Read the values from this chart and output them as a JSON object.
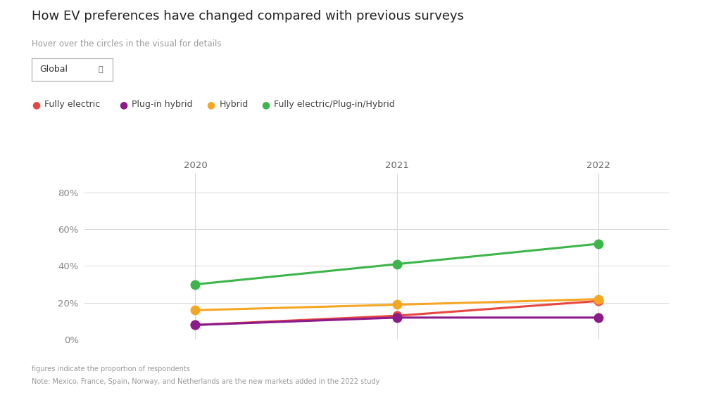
{
  "title": "How EV preferences have changed compared with previous surveys",
  "subtitle": "Hover over the circles in the visual for details",
  "dropdown_label": "Global",
  "footnote1": "figures indicate the proportion of respondents",
  "footnote2": "Note: Mexico, France, Spain, Norway, and Netherlands are the new markets added in the 2022 study",
  "years": [
    "2020",
    "2021",
    "2022"
  ],
  "x_positions": [
    0,
    1,
    2
  ],
  "series": [
    {
      "name": "Fully electric",
      "color": "#e8473f",
      "values": [
        0.08,
        0.13,
        0.21
      ]
    },
    {
      "name": "Plug-in hybrid",
      "color": "#8b1a8b",
      "values": [
        0.08,
        0.12,
        0.12
      ]
    },
    {
      "name": "Hybrid",
      "color": "#f5a623",
      "values": [
        0.16,
        0.19,
        0.22
      ]
    },
    {
      "name": "Fully electric/Plug-in/Hybrid",
      "color": "#3cb54a",
      "values": [
        0.3,
        0.41,
        0.52
      ]
    }
  ],
  "ylim": [
    0,
    0.9
  ],
  "yticks": [
    0.0,
    0.2,
    0.4,
    0.6,
    0.8
  ],
  "ytick_labels": [
    "0%",
    "20%",
    "40%",
    "60%",
    "80%"
  ],
  "background_color": "#ffffff",
  "grid_color": "#d8d8d8",
  "marker_size": 9,
  "line_width": 2.2,
  "title_fontsize": 13,
  "subtitle_fontsize": 8.5,
  "legend_fontsize": 9,
  "axis_fontsize": 9.5,
  "footnote_fontsize": 7
}
